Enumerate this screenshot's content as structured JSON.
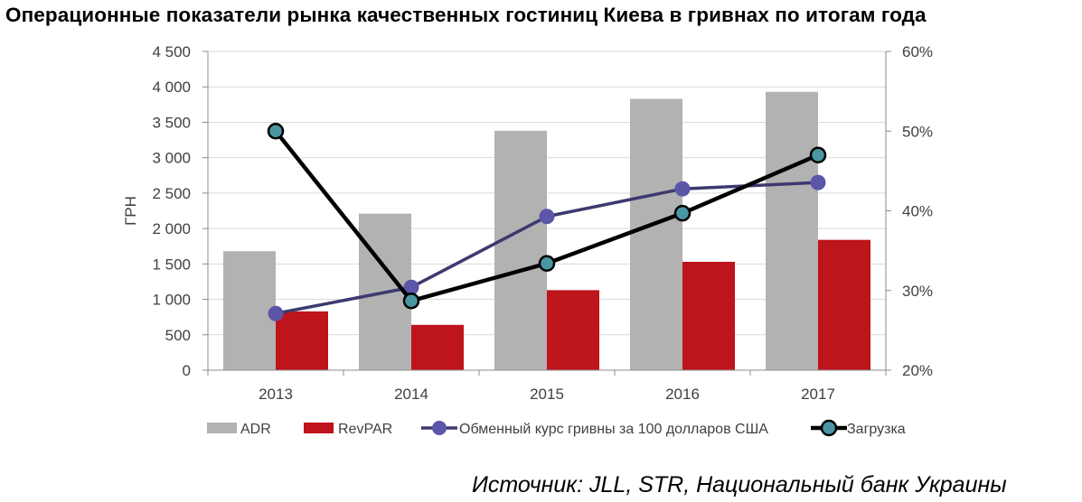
{
  "title": "Операционные показатели рынка качественных гостиниц Киева в гривнах по итогам года",
  "source": "Источник: JLL, STR, Национальный банк Украины",
  "chart_data": {
    "type": "bar",
    "categories": [
      "2013",
      "2014",
      "2015",
      "2016",
      "2017"
    ],
    "ylabel": "ГРН",
    "ylim": [
      0,
      4500
    ],
    "y_ticks": [
      "0",
      "500",
      "1 000",
      "1 500",
      "2 000",
      "2 500",
      "3 000",
      "3 500",
      "4 000",
      "4 500"
    ],
    "y2lim": [
      20,
      60
    ],
    "y2_ticks": [
      "20%",
      "30%",
      "40%",
      "50%",
      "60%"
    ],
    "grid": "horizontal",
    "legend_position": "bottom",
    "series": [
      {
        "name": "ADR",
        "type": "bar",
        "axis": "left",
        "color": "#b2b2b2",
        "values": [
          1680,
          2210,
          3380,
          3830,
          3930
        ]
      },
      {
        "name": "RevPAR",
        "type": "bar",
        "axis": "left",
        "color": "#be141c",
        "values": [
          830,
          640,
          1130,
          1530,
          1840
        ]
      },
      {
        "name": "Обменный курс гривны за 100 долларов США",
        "type": "line",
        "axis": "left",
        "color": "#3c3a6e",
        "marker_color": "#5b56a8",
        "values": [
          800,
          1170,
          2170,
          2560,
          2650
        ]
      },
      {
        "name": "Загрузка",
        "type": "line",
        "axis": "right",
        "color": "#000000",
        "marker_color": "#4a96a3",
        "values": [
          50.0,
          28.7,
          33.4,
          39.7,
          47.0
        ]
      }
    ]
  }
}
